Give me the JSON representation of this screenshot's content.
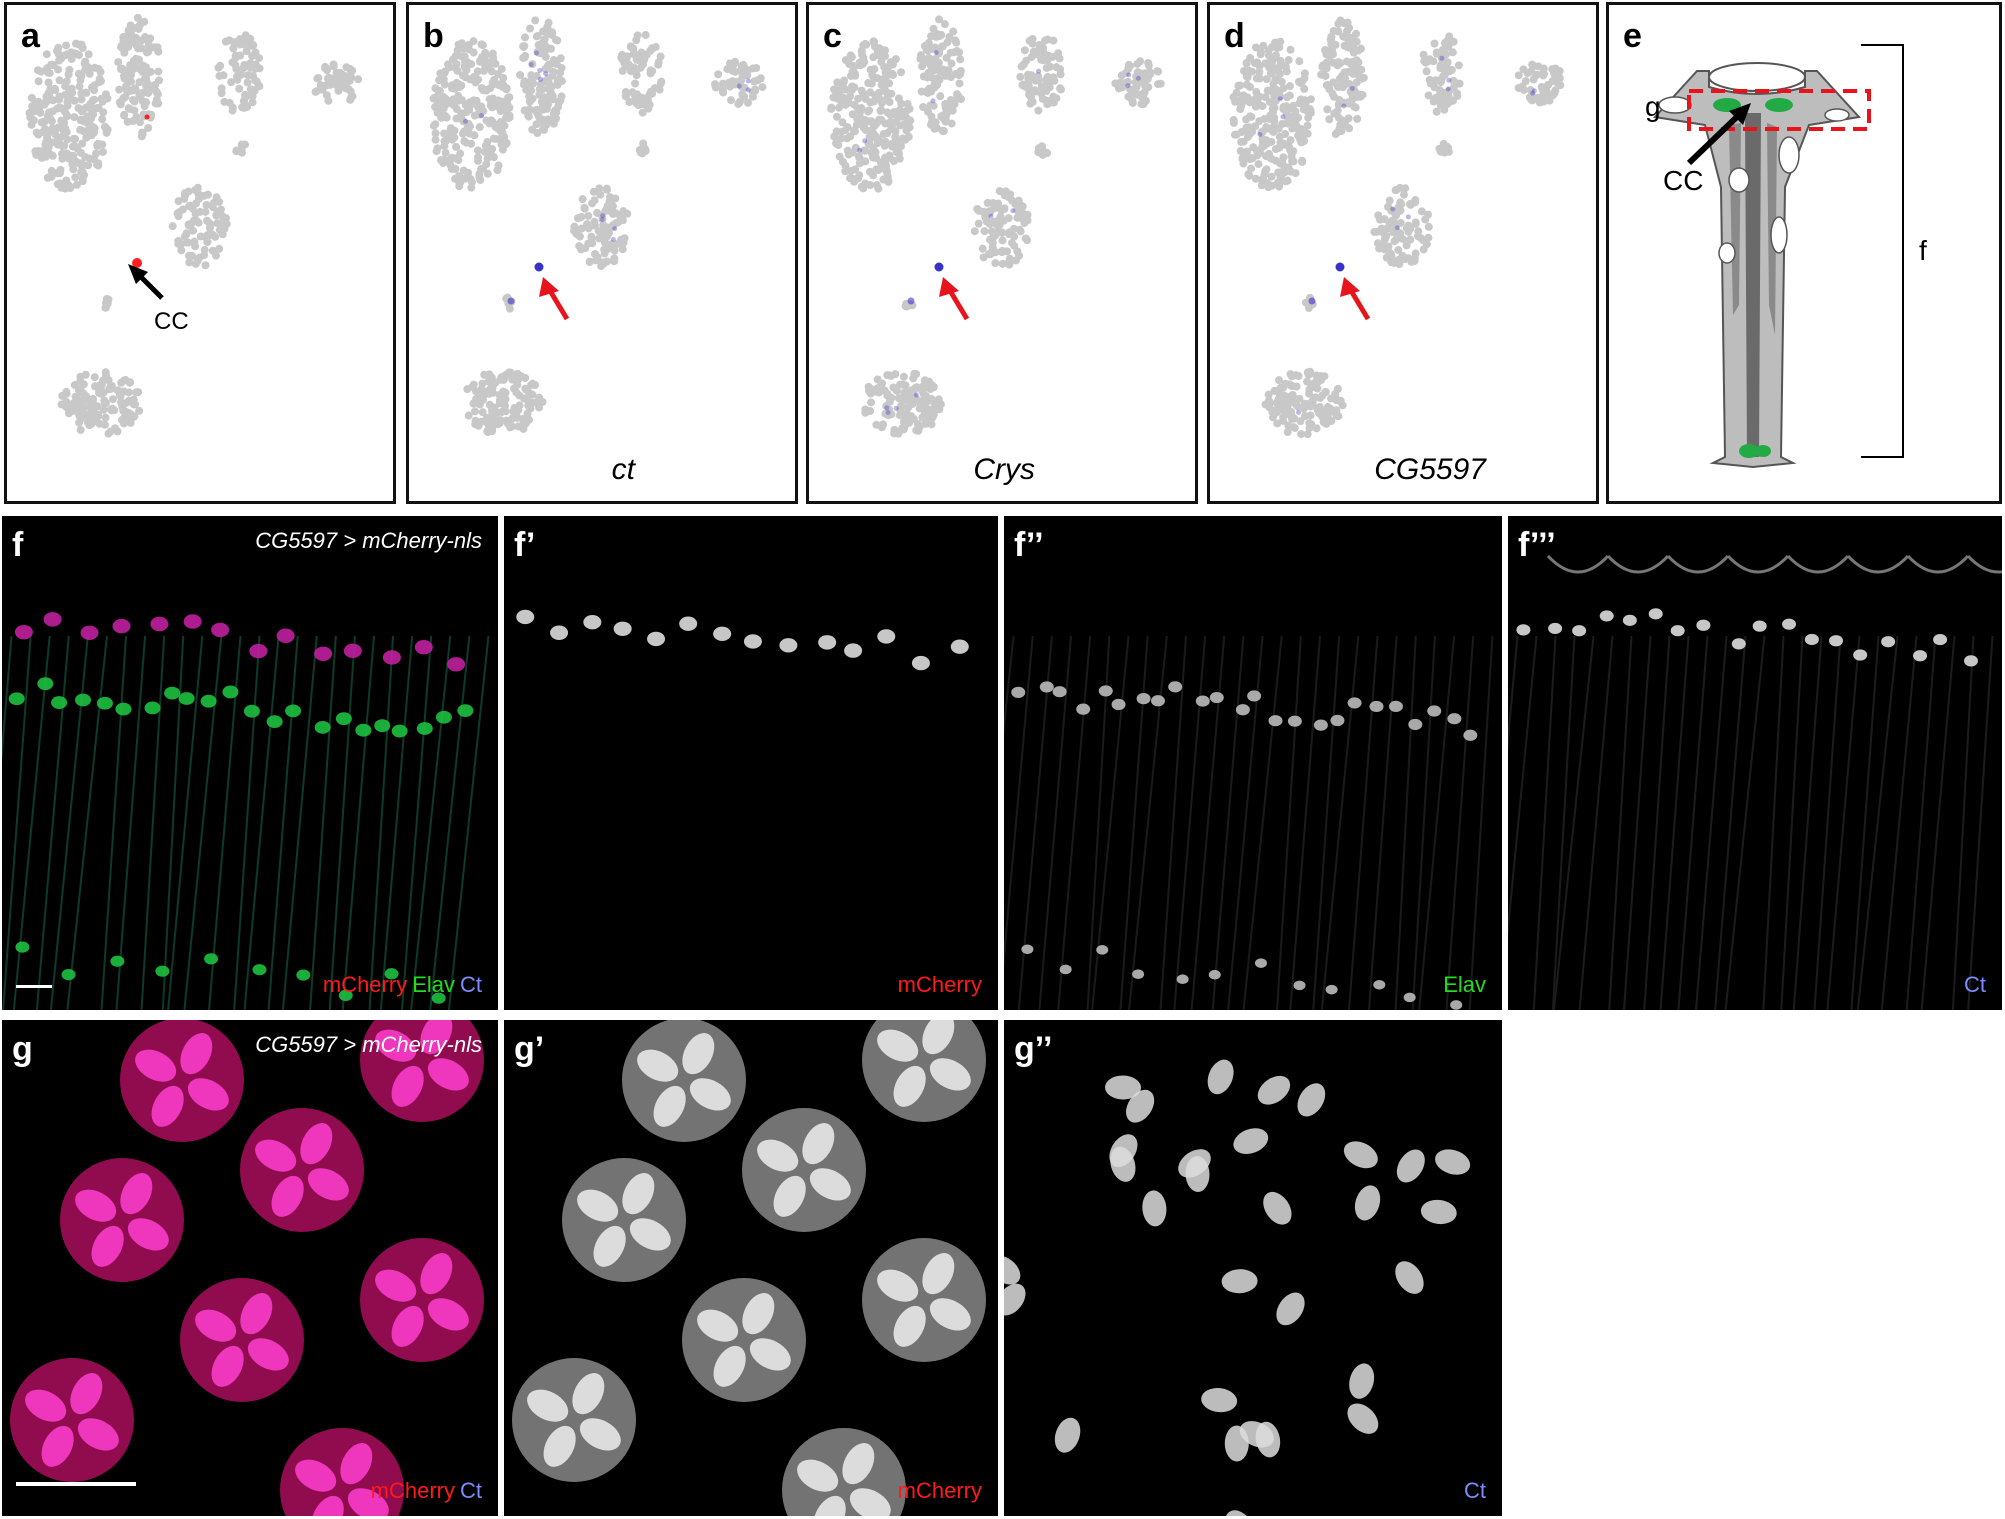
{
  "panels": {
    "a": {
      "label": "a",
      "annotation": "CC"
    },
    "b": {
      "label": "b",
      "gene": "ct"
    },
    "c": {
      "label": "c",
      "gene": "Crys"
    },
    "d": {
      "label": "d",
      "gene": "CG5597"
    },
    "e": {
      "label": "e",
      "box_label": "g",
      "cell_label": "CC",
      "bracket_label": "f"
    },
    "f": {
      "label": "f",
      "caption": "CG5597 > mCherry-nls",
      "channels": [
        {
          "text": "mCherry",
          "color": "#ff1a1a"
        },
        {
          "text": "Elav",
          "color": "#22dd22"
        },
        {
          "text": "Ct",
          "color": "#7c8cff"
        }
      ]
    },
    "f1": {
      "label": "f’",
      "channel": "mCherry",
      "color": "#ff1a1a"
    },
    "f2": {
      "label": "f’’",
      "channel": "Elav",
      "color": "#22dd22"
    },
    "f3": {
      "label": "f’’’",
      "channel": "Ct",
      "color": "#7c8cff"
    },
    "g": {
      "label": "g",
      "caption": "CG5597 > mCherry-nls",
      "channels": [
        {
          "text": "mCherry",
          "color": "#ff1a1a"
        },
        {
          "text": "Ct",
          "color": "#7c8cff"
        }
      ]
    },
    "g1": {
      "label": "g’",
      "channel": "mCherry",
      "color": "#ff1a1a"
    },
    "g2": {
      "label": "g’’",
      "channel": "Ct",
      "color": "#7c8cff"
    }
  },
  "colors": {
    "cluster_gray": "#c8c8c8",
    "highlight_red": "#ff2020",
    "expression_blue": "#3a32c8",
    "arrow_red": "#e8141c"
  }
}
